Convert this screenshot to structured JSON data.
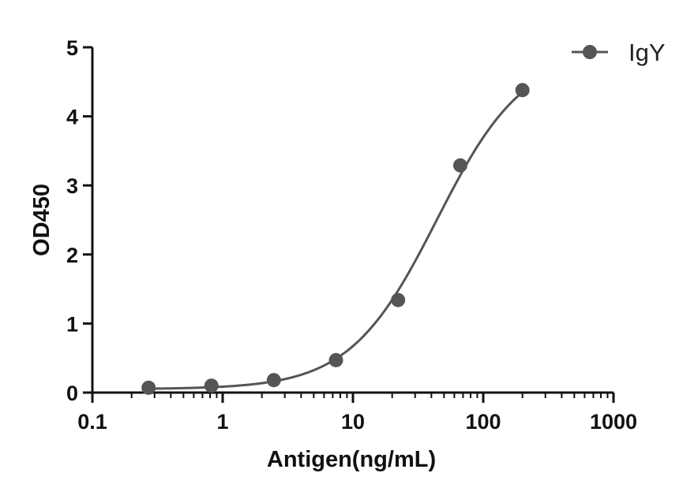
{
  "chart_data": {
    "type": "scatter",
    "x_scale": "log",
    "xlabel": "Antigen(ng/mL)",
    "ylabel": "OD450",
    "xlim": [
      0.1,
      1000
    ],
    "ylim": [
      0,
      5
    ],
    "x_ticks": [
      0.1,
      1,
      10,
      100,
      1000
    ],
    "x_tick_labels": [
      "0.1",
      "1",
      "10",
      "100",
      "1000"
    ],
    "y_ticks": [
      0,
      1,
      2,
      3,
      4,
      5
    ],
    "y_tick_labels": [
      "0",
      "1",
      "2",
      "3",
      "4",
      "5"
    ],
    "grid": false,
    "legend_position": "top-right",
    "series": [
      {
        "name": "IgY",
        "color": "#555555",
        "marker": "circle",
        "fit": "four-parameter logistic",
        "x": [
          0.27,
          0.82,
          2.47,
          7.41,
          22.2,
          66.7,
          200
        ],
        "y": [
          0.07,
          0.1,
          0.18,
          0.47,
          1.34,
          3.29,
          4.38
        ]
      }
    ]
  }
}
